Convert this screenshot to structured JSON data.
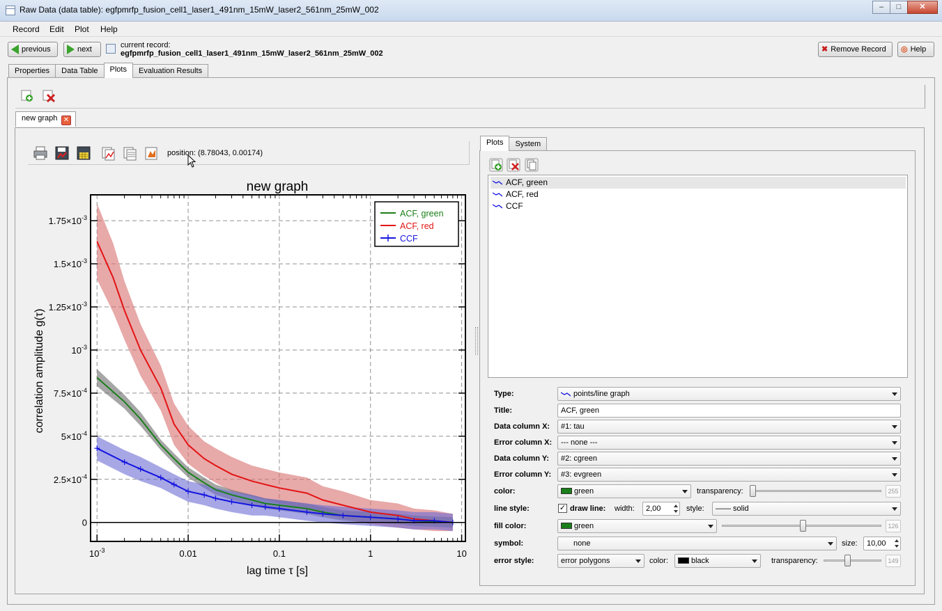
{
  "window": {
    "title": "Raw Data (data table): egfpmrfp_fusion_cell1_laser1_491nm_15mW_laser2_561nm_25mW_002"
  },
  "menu": [
    "Record",
    "Edit",
    "Plot",
    "Help"
  ],
  "nav": {
    "previous": "previous",
    "next": "next",
    "current_record_label": "current record:",
    "current_record_value": "egfpmrfp_fusion_cell1_laser1_491nm_15mW_laser2_561nm_25mW_002",
    "remove_record": "Remove Record",
    "help": "Help"
  },
  "main_tabs": [
    "Properties",
    "Data Table",
    "Plots",
    "Evaluation Results"
  ],
  "graph_tab": {
    "label": "new graph"
  },
  "plot_toolbar": {
    "position": "position: (8.78043, 0.00174)"
  },
  "colors": {
    "green": "#1a7f1a",
    "red": "#e31414",
    "blue": "#1414e0",
    "red_band": "#d97070",
    "green_band": "#6b6b6b",
    "blue_band": "#6d6dd6"
  },
  "chart_data": {
    "type": "line",
    "title": "new graph",
    "xlabel": "lag time τ [s]",
    "ylabel": "correlation amplitude g(τ)",
    "x_scale": "log",
    "xlim": [
      0.00085,
      11
    ],
    "ylim": [
      -0.00011,
      0.0019
    ],
    "x_ticks": [
      {
        "value": 0.001,
        "label": "10-3"
      },
      {
        "value": 0.01,
        "label": "0.01"
      },
      {
        "value": 0.1,
        "label": "0.1"
      },
      {
        "value": 1,
        "label": "1"
      },
      {
        "value": 10,
        "label": "10"
      }
    ],
    "y_ticks": [
      {
        "value": 0,
        "label": "0"
      },
      {
        "value": 0.00025,
        "label": "2.5×10-4"
      },
      {
        "value": 0.0005,
        "label": "5×10-4"
      },
      {
        "value": 0.00075,
        "label": "7.5×10-4"
      },
      {
        "value": 0.001,
        "label": "10-3"
      },
      {
        "value": 0.00125,
        "label": "1.25×10-3"
      },
      {
        "value": 0.0015,
        "label": "1.5×10-3"
      },
      {
        "value": 0.00175,
        "label": "1.75×10-3"
      }
    ],
    "grid": true,
    "legend": "top-right",
    "series": [
      {
        "name": "ACF, green",
        "color": "#1a7f1a",
        "x": [
          0.001,
          0.002,
          0.003,
          0.005,
          0.007,
          0.01,
          0.015,
          0.02,
          0.03,
          0.05,
          0.07,
          0.1,
          0.2,
          0.3,
          0.5,
          1,
          2,
          3,
          5,
          8
        ],
        "y": [
          0.00084,
          0.0007,
          0.0006,
          0.00045,
          0.00037,
          0.00029,
          0.00023,
          0.00019,
          0.00016,
          0.00013,
          0.00011,
          0.0001,
          8e-05,
          6e-05,
          4e-05,
          3e-05,
          2e-05,
          1e-05,
          5e-06,
          0.0
        ],
        "err": [
          5e-05,
          4e-05,
          4e-05,
          3e-05,
          3e-05,
          3e-05,
          3e-05,
          3e-05,
          3e-05,
          3e-05,
          3e-05,
          3e-05,
          3e-05,
          3e-05,
          3e-05,
          3e-05,
          3e-05,
          3e-05,
          3e-05,
          3e-05
        ]
      },
      {
        "name": "ACF, red",
        "color": "#e31414",
        "x": [
          0.001,
          0.0015,
          0.002,
          0.003,
          0.005,
          0.007,
          0.01,
          0.015,
          0.02,
          0.03,
          0.05,
          0.07,
          0.1,
          0.2,
          0.3,
          0.5,
          1,
          2,
          3,
          5,
          8
        ],
        "y": [
          0.00163,
          0.00142,
          0.00123,
          0.001,
          0.00078,
          0.00057,
          0.00045,
          0.00037,
          0.00033,
          0.00028,
          0.00024,
          0.00022,
          0.0002,
          0.00017,
          0.00013,
          0.0001,
          6e-05,
          4e-05,
          2e-05,
          1e-05,
          0.0
        ],
        "err": [
          0.00022,
          0.0002,
          0.00017,
          0.00015,
          0.00013,
          0.00012,
          0.00011,
          0.0001,
          0.0001,
          0.0001,
          9e-05,
          9e-05,
          9e-05,
          9e-05,
          8e-05,
          8e-05,
          7e-05,
          7e-05,
          6e-05,
          6e-05,
          5e-05
        ]
      },
      {
        "name": "CCF",
        "color": "#1414e0",
        "x": [
          0.001,
          0.002,
          0.003,
          0.005,
          0.007,
          0.01,
          0.015,
          0.02,
          0.03,
          0.05,
          0.07,
          0.1,
          0.2,
          0.3,
          0.5,
          1,
          2,
          3,
          5,
          8
        ],
        "y": [
          0.00043,
          0.00035,
          0.00031,
          0.00026,
          0.00022,
          0.00018,
          0.00016,
          0.00014,
          0.00012,
          0.0001,
          9e-05,
          8e-05,
          6e-05,
          5e-05,
          4e-05,
          3e-05,
          2e-05,
          1e-05,
          1e-05,
          0.0
        ],
        "err": [
          7e-05,
          7e-05,
          7e-05,
          6e-05,
          6e-05,
          6e-05,
          6e-05,
          6e-05,
          6e-05,
          6e-05,
          5e-05,
          5e-05,
          5e-05,
          5e-05,
          5e-05,
          5e-05,
          5e-05,
          5e-05,
          5e-05,
          5e-05
        ]
      }
    ]
  },
  "side_tabs": [
    "Plots",
    "System"
  ],
  "plot_list": [
    "ACF, green",
    "ACF, red",
    "CCF"
  ],
  "props": {
    "type_label": "Type:",
    "type_value": "points/line graph",
    "title_label": "Title:",
    "title_value": "ACF, green",
    "datax_label": "Data column X:",
    "datax_value": "#1: tau",
    "errx_label": "Error column X:",
    "errx_value": "--- none ---",
    "datay_label": "Data column Y:",
    "datay_value": "#2: cgreen",
    "erry_label": "Error column Y:",
    "erry_value": "#3: evgreen",
    "color_label": "color:",
    "color_value": "green",
    "transparency_label": "transparency:",
    "transparency_value": "255",
    "linestyle_label": "line style:",
    "drawline_label": "draw line:",
    "width_label": "width:",
    "width_value": "2,00",
    "style_label": "style:",
    "style_value": "—— solid",
    "fill_label": "fill color:",
    "fill_value": "green",
    "fill_transparency": "126",
    "symbol_label": "symbol:",
    "symbol_value": "none",
    "size_label": "size:",
    "size_value": "10,00",
    "errstyle_label": "error style:",
    "errstyle_value": "error polygons",
    "errcolor_label": "color:",
    "errcolor_value": "black",
    "errtransp_label": "transparency:",
    "errtransp_value": "149"
  }
}
